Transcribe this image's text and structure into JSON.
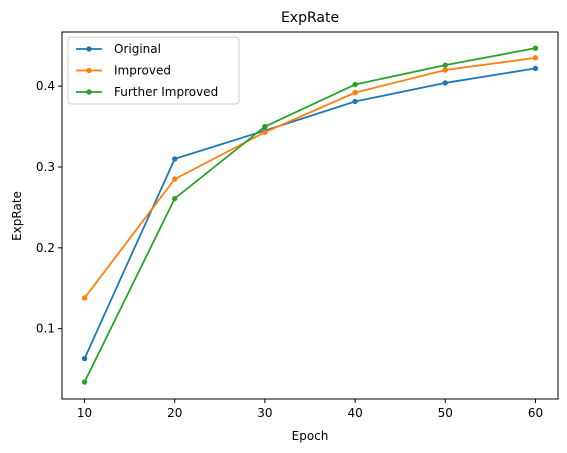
{
  "chart_data": {
    "type": "line",
    "title": "ExpRate",
    "xlabel": "Epoch",
    "ylabel": "ExpRate",
    "x": [
      10,
      20,
      30,
      40,
      50,
      60
    ],
    "xticks": [
      "10",
      "20",
      "30",
      "40",
      "50",
      "60"
    ],
    "yticks": [
      "0.1",
      "0.2",
      "0.3",
      "0.4"
    ],
    "xlim": [
      7.5,
      62.5
    ],
    "ylim": [
      0.013,
      0.467
    ],
    "grid": false,
    "legend": "top-left",
    "series": [
      {
        "name": "Original",
        "color": "#1f77b4",
        "values": [
          0.063,
          0.31,
          0.345,
          0.381,
          0.404,
          0.422
        ]
      },
      {
        "name": "Improved",
        "color": "#ff7f0e",
        "values": [
          0.138,
          0.285,
          0.343,
          0.392,
          0.42,
          0.435
        ]
      },
      {
        "name": "Further Improved",
        "color": "#2ca02c",
        "values": [
          0.034,
          0.261,
          0.35,
          0.402,
          0.426,
          0.447
        ]
      }
    ]
  }
}
